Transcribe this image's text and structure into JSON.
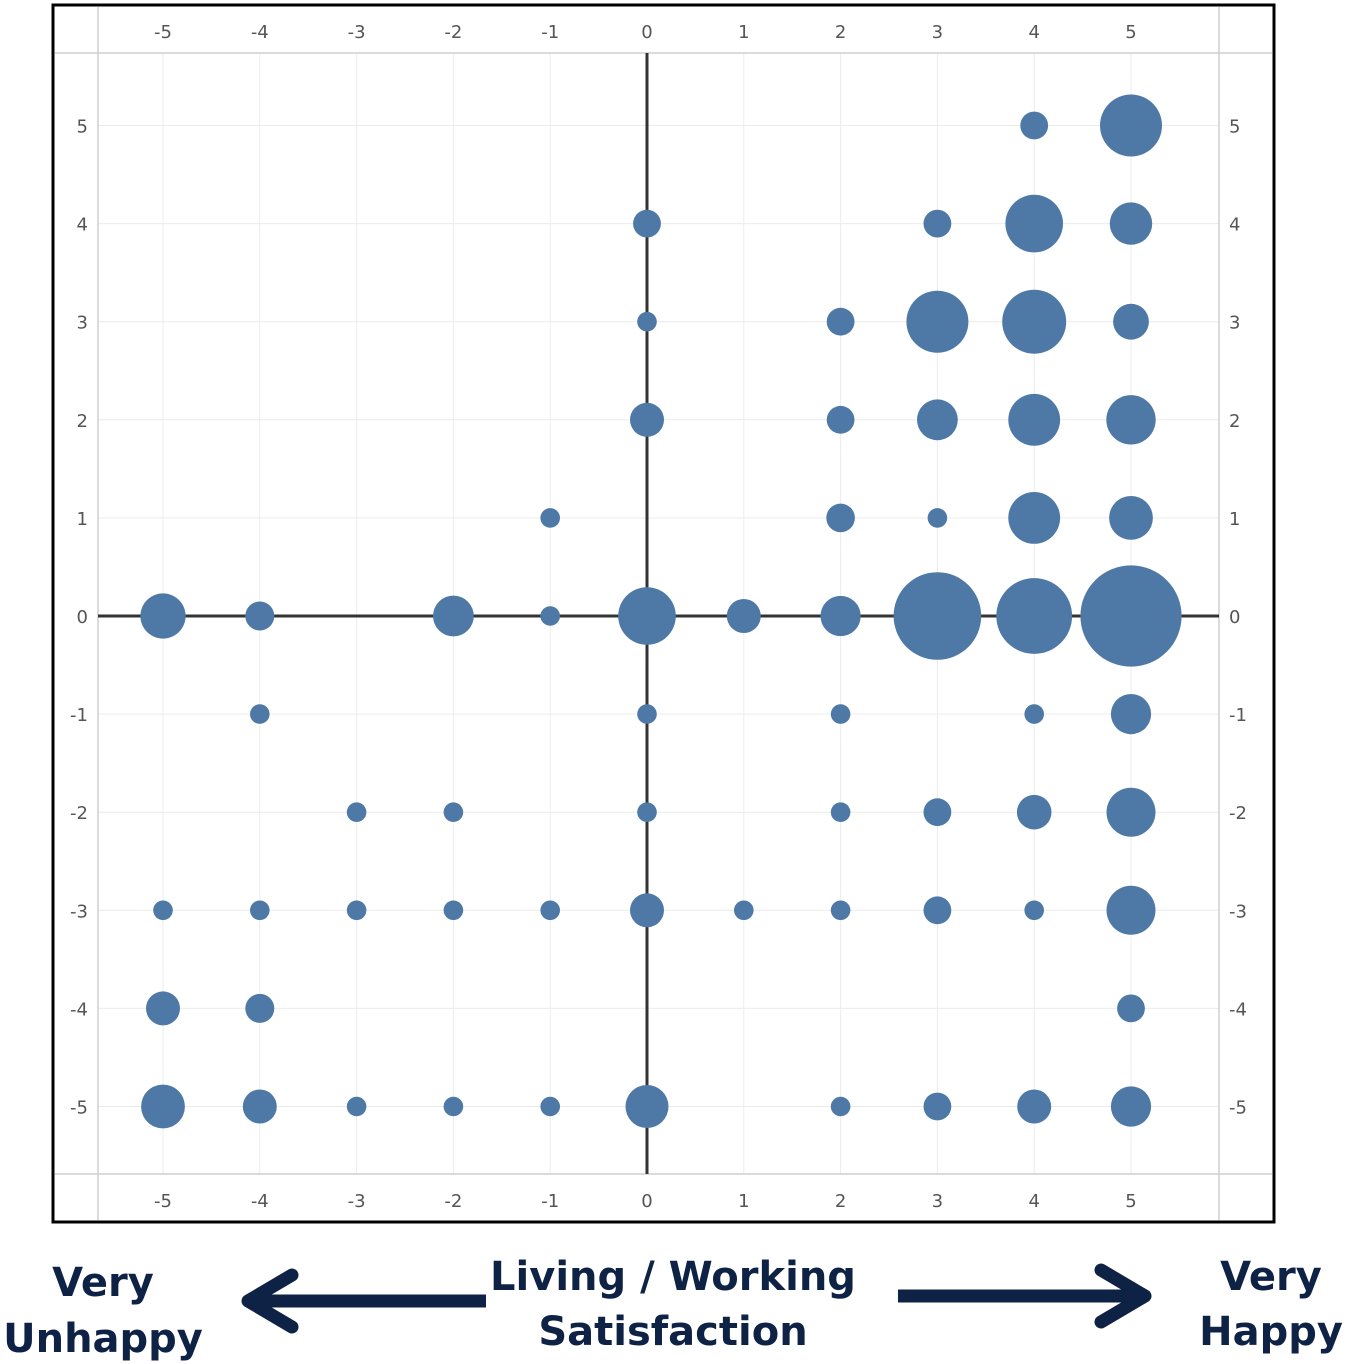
{
  "chart_data": {
    "type": "scatter",
    "title": "",
    "xlabel": "",
    "ylabel": "",
    "xlim": [
      -5,
      5
    ],
    "ylim": [
      -5,
      5
    ],
    "x_ticks": [
      -5,
      -4,
      -3,
      -2,
      -1,
      0,
      1,
      2,
      3,
      4,
      5
    ],
    "y_ticks": [
      5,
      4,
      3,
      2,
      1,
      0,
      -1,
      -2,
      -3,
      -4,
      -5
    ],
    "grid": true,
    "legend": "none",
    "marker_color": "#4e79a7",
    "axis_line_color": "#333333",
    "size_note": "relative bubble size (1 = smallest)",
    "points": [
      {
        "x": 4,
        "y": 5,
        "size": 3
      },
      {
        "x": 5,
        "y": 5,
        "size": 15
      },
      {
        "x": 0,
        "y": 4,
        "size": 3
      },
      {
        "x": 3,
        "y": 4,
        "size": 3
      },
      {
        "x": 4,
        "y": 4,
        "size": 13
      },
      {
        "x": 5,
        "y": 4,
        "size": 7
      },
      {
        "x": 0,
        "y": 3,
        "size": 1.5
      },
      {
        "x": 2,
        "y": 3,
        "size": 3
      },
      {
        "x": 3,
        "y": 3,
        "size": 15
      },
      {
        "x": 4,
        "y": 3,
        "size": 16
      },
      {
        "x": 5,
        "y": 3,
        "size": 5
      },
      {
        "x": 0,
        "y": 2,
        "size": 4.5
      },
      {
        "x": 2,
        "y": 2,
        "size": 3
      },
      {
        "x": 3,
        "y": 2,
        "size": 6.5
      },
      {
        "x": 4,
        "y": 2,
        "size": 10.5
      },
      {
        "x": 5,
        "y": 2,
        "size": 9.5
      },
      {
        "x": -1,
        "y": 1,
        "size": 1.5
      },
      {
        "x": 2,
        "y": 1,
        "size": 3.2
      },
      {
        "x": 3,
        "y": 1,
        "size": 1.5
      },
      {
        "x": 4,
        "y": 1,
        "size": 10.5
      },
      {
        "x": 5,
        "y": 1,
        "size": 7.5
      },
      {
        "x": -5,
        "y": 0,
        "size": 8
      },
      {
        "x": -4,
        "y": 0,
        "size": 3.3
      },
      {
        "x": -2,
        "y": 0,
        "size": 6.5
      },
      {
        "x": -1,
        "y": 0,
        "size": 1.5
      },
      {
        "x": 0,
        "y": 0,
        "size": 13
      },
      {
        "x": 1,
        "y": 0,
        "size": 4.5
      },
      {
        "x": 2,
        "y": 0,
        "size": 6.3
      },
      {
        "x": 3,
        "y": 0,
        "size": 30
      },
      {
        "x": 4,
        "y": 0,
        "size": 22.5
      },
      {
        "x": 5,
        "y": 0,
        "size": 40
      },
      {
        "x": -4,
        "y": -1,
        "size": 1.5
      },
      {
        "x": 0,
        "y": -1,
        "size": 1.5
      },
      {
        "x": 2,
        "y": -1,
        "size": 1.5
      },
      {
        "x": 4,
        "y": -1,
        "size": 1.5
      },
      {
        "x": 5,
        "y": -1,
        "size": 6.3
      },
      {
        "x": -3,
        "y": -2,
        "size": 1.5
      },
      {
        "x": -2,
        "y": -2,
        "size": 1.5
      },
      {
        "x": 0,
        "y": -2,
        "size": 1.5
      },
      {
        "x": 2,
        "y": -2,
        "size": 1.5
      },
      {
        "x": 3,
        "y": -2,
        "size": 3
      },
      {
        "x": 4,
        "y": -2,
        "size": 4.7
      },
      {
        "x": 5,
        "y": -2,
        "size": 9.4
      },
      {
        "x": -5,
        "y": -3,
        "size": 1.5
      },
      {
        "x": -4,
        "y": -3,
        "size": 1.5
      },
      {
        "x": -3,
        "y": -3,
        "size": 1.5
      },
      {
        "x": -2,
        "y": -3,
        "size": 1.5
      },
      {
        "x": -1,
        "y": -3,
        "size": 1.5
      },
      {
        "x": 0,
        "y": -3,
        "size": 4.5
      },
      {
        "x": 1,
        "y": -3,
        "size": 1.5
      },
      {
        "x": 2,
        "y": -3,
        "size": 1.5
      },
      {
        "x": 3,
        "y": -3,
        "size": 3
      },
      {
        "x": 4,
        "y": -3,
        "size": 1.5
      },
      {
        "x": 5,
        "y": -3,
        "size": 9.4
      },
      {
        "x": -5,
        "y": -4,
        "size": 4.5
      },
      {
        "x": -4,
        "y": -4,
        "size": 3.3
      },
      {
        "x": 5,
        "y": -4,
        "size": 3
      },
      {
        "x": -5,
        "y": -5,
        "size": 7.5
      },
      {
        "x": -4,
        "y": -5,
        "size": 4.5
      },
      {
        "x": -3,
        "y": -5,
        "size": 1.5
      },
      {
        "x": -2,
        "y": -5,
        "size": 1.5
      },
      {
        "x": -1,
        "y": -5,
        "size": 1.5
      },
      {
        "x": 0,
        "y": -5,
        "size": 7.2
      },
      {
        "x": 2,
        "y": -5,
        "size": 1.5
      },
      {
        "x": 3,
        "y": -5,
        "size": 3
      },
      {
        "x": 4,
        "y": -5,
        "size": 4.5
      },
      {
        "x": 5,
        "y": -5,
        "size": 6.3
      }
    ]
  },
  "caption": {
    "left_line1": "Very",
    "left_line2": "Unhappy",
    "center_line1": "Living / Working",
    "center_line2": "Satisfaction",
    "right_line1": "Very",
    "right_line2": "Happy",
    "arrow_color": "#0d2244"
  }
}
